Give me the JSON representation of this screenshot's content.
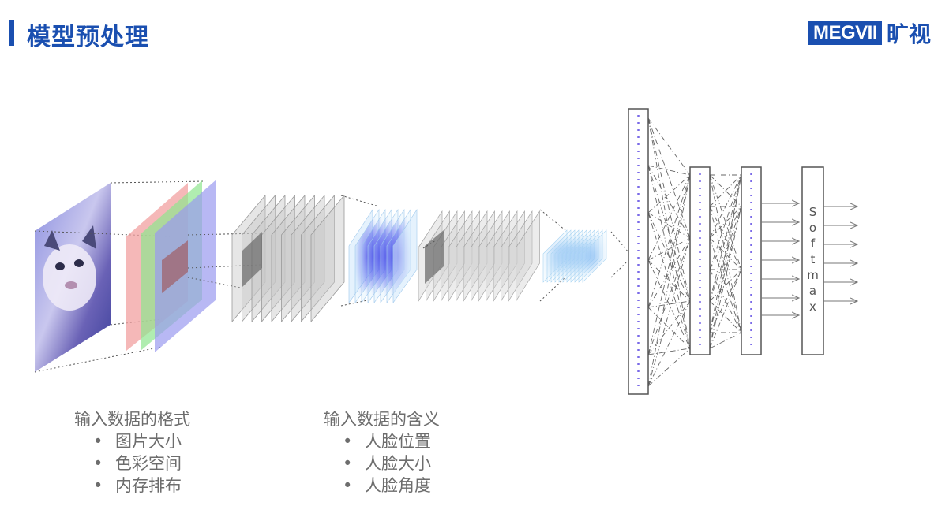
{
  "header": {
    "title": "模型预处理",
    "logo_text": "MEGVII",
    "logo_cn": "旷视",
    "accent_color": "#1a4fb0"
  },
  "diagram": {
    "softmax_label": "Softmax"
  },
  "lists": {
    "format": {
      "heading": "输入数据的格式",
      "items": [
        "图片大小",
        "色彩空间",
        "内存排布"
      ]
    },
    "meaning": {
      "heading": "输入数据的含义",
      "items": [
        "人脸位置",
        "人脸大小",
        "人脸角度"
      ]
    }
  }
}
